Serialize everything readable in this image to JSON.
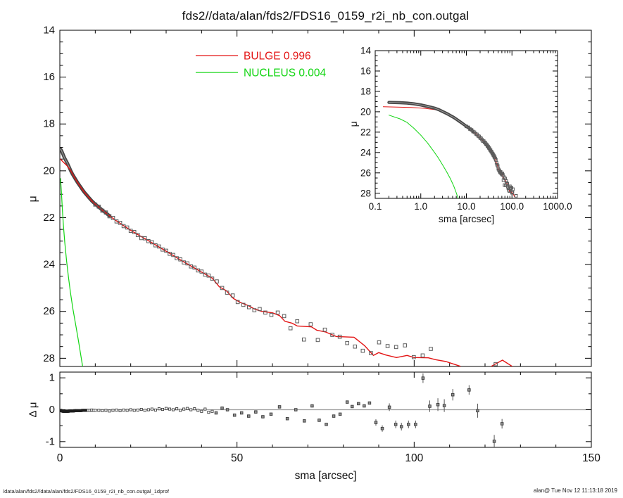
{
  "title": "fds2//data/alan/fds2/FDS16_0159_r2i_nb_con.outgal",
  "footer": {
    "left": "/data/alan/fds2//data/alan/fds2/FDS16_0159_r2i_nb_con.outgal_1dprof",
    "right": "alan@  Tue Nov 12 11:13:18 2019"
  },
  "colors": {
    "bulge": "#e31414",
    "nucleus": "#12d512",
    "data_band": "#474747",
    "data_square": "#5c5c5c",
    "axis": "#000000",
    "zero_line": "#9c9c9c",
    "residual_point": "#8f8f8f",
    "residual_dense": "#1c1c1c"
  },
  "legend": {
    "items": [
      {
        "label": "BULGE  0.996",
        "color": "#e31414"
      },
      {
        "label": "NUCLEUS  0.004",
        "color": "#12d512"
      }
    ]
  },
  "chart_data": [
    {
      "panel": "main",
      "type": "scatter",
      "xlim": [
        0,
        150
      ],
      "ylim": [
        14,
        28.35
      ],
      "y_reversed": true,
      "grid": false,
      "xticks_major": [
        0,
        50,
        100,
        150
      ],
      "xtick_minor_step": 10,
      "yticks": [
        14,
        16,
        18,
        20,
        22,
        24,
        26,
        28
      ],
      "ytick_labels": [
        "14",
        "16",
        "18",
        "20",
        "22",
        "24",
        "26",
        "28"
      ],
      "ytick_minor_step": 0.5,
      "ylabel": "μ",
      "series": {
        "data_band": [
          [
            0.2,
            19.08
          ],
          [
            0.35,
            19.11
          ],
          [
            0.5,
            19.15
          ],
          [
            0.7,
            19.22
          ],
          [
            1.0,
            19.33
          ],
          [
            1.3,
            19.44
          ],
          [
            1.6,
            19.53
          ],
          [
            2.0,
            19.64
          ],
          [
            2.5,
            19.8
          ],
          [
            3.0,
            19.97
          ],
          [
            3.5,
            20.12
          ],
          [
            4.0,
            20.25
          ],
          [
            4.5,
            20.38
          ],
          [
            5.0,
            20.5
          ],
          [
            5.5,
            20.61
          ],
          [
            6.0,
            20.72
          ],
          [
            6.5,
            20.83
          ],
          [
            7.0,
            20.93
          ],
          [
            7.5,
            21.02
          ],
          [
            8.0,
            21.11
          ],
          [
            9.0,
            21.28
          ],
          [
            10,
            21.42
          ],
          [
            11,
            21.55
          ],
          [
            12,
            21.68
          ],
          [
            13,
            21.8
          ],
          [
            14,
            21.92
          ]
        ],
        "nucleus_line": [
          [
            0.2,
            20.33
          ],
          [
            0.35,
            20.7
          ],
          [
            0.5,
            21.05
          ],
          [
            0.7,
            21.6
          ],
          [
            1.0,
            22.3
          ],
          [
            1.4,
            23.05
          ],
          [
            1.9,
            23.85
          ],
          [
            2.4,
            24.5
          ],
          [
            3.0,
            25.2
          ],
          [
            3.7,
            25.9
          ],
          [
            4.5,
            26.6
          ],
          [
            5.3,
            27.3
          ],
          [
            6.0,
            27.95
          ],
          [
            6.6,
            28.5
          ],
          [
            6.8,
            28.65
          ]
        ],
        "bulge_line": [
          [
            0.15,
            19.5
          ],
          [
            0.6,
            19.57
          ],
          [
            1.2,
            19.66
          ],
          [
            2,
            19.78
          ],
          [
            3,
            19.97
          ],
          [
            4,
            20.25
          ],
          [
            5,
            20.5
          ],
          [
            6,
            20.72
          ],
          [
            7,
            20.93
          ],
          [
            8,
            21.11
          ],
          [
            9,
            21.28
          ],
          [
            10,
            21.42
          ],
          [
            12,
            21.68
          ],
          [
            14,
            21.92
          ],
          [
            16,
            22.14
          ],
          [
            18,
            22.34
          ],
          [
            20,
            22.54
          ],
          [
            22,
            22.72
          ],
          [
            25,
            22.98
          ],
          [
            28,
            23.25
          ],
          [
            31,
            23.52
          ],
          [
            34,
            23.8
          ],
          [
            37,
            24.06
          ],
          [
            40,
            24.32
          ],
          [
            43,
            24.58
          ],
          [
            45,
            24.95
          ],
          [
            47,
            25.12
          ],
          [
            49,
            25.45
          ],
          [
            51,
            25.62
          ],
          [
            53,
            25.74
          ],
          [
            55,
            25.9
          ],
          [
            57,
            26.0
          ],
          [
            60,
            26.06
          ],
          [
            62,
            26.18
          ],
          [
            63.5,
            26.42
          ],
          [
            65.5,
            26.5
          ],
          [
            67,
            26.62
          ],
          [
            71,
            26.66
          ],
          [
            72.5,
            26.8
          ],
          [
            75,
            26.88
          ],
          [
            78,
            27.07
          ],
          [
            83,
            27.1
          ],
          [
            86,
            27.46
          ],
          [
            88.5,
            27.88
          ],
          [
            90,
            27.76
          ],
          [
            92,
            27.86
          ],
          [
            95,
            27.97
          ],
          [
            98,
            27.88
          ],
          [
            100,
            27.97
          ],
          [
            104,
            27.98
          ],
          [
            106,
            28.06
          ],
          [
            109,
            28.14
          ],
          [
            113,
            28.34
          ]
        ],
        "bulge_line_tail": [
          [
            121.8,
            28.34
          ],
          [
            124.9,
            28.08
          ],
          [
            127.6,
            28.34
          ]
        ],
        "data_squares": [
          [
            10,
            21.44
          ],
          [
            11,
            21.53
          ],
          [
            12,
            21.7
          ],
          [
            13,
            21.78
          ],
          [
            14,
            21.94
          ],
          [
            15,
            22.01
          ],
          [
            16,
            22.16
          ],
          [
            17,
            22.22
          ],
          [
            18,
            22.36
          ],
          [
            19,
            22.42
          ],
          [
            20,
            22.56
          ],
          [
            21,
            22.61
          ],
          [
            22,
            22.74
          ],
          [
            23,
            22.87
          ],
          [
            24,
            22.88
          ],
          [
            25,
            23.0
          ],
          [
            26,
            23.05
          ],
          [
            27,
            23.18
          ],
          [
            28,
            23.23
          ],
          [
            29,
            23.36
          ],
          [
            30,
            23.41
          ],
          [
            31,
            23.54
          ],
          [
            32,
            23.59
          ],
          [
            33,
            23.73
          ],
          [
            34,
            23.78
          ],
          [
            35,
            23.91
          ],
          [
            36,
            23.95
          ],
          [
            37,
            24.08
          ],
          [
            38,
            24.13
          ],
          [
            39,
            24.25
          ],
          [
            40,
            24.3
          ],
          [
            41,
            24.43
          ],
          [
            42,
            24.47
          ],
          [
            43,
            24.6
          ],
          [
            44.3,
            24.72
          ],
          [
            45.8,
            25.0
          ],
          [
            47.2,
            25.2
          ],
          [
            48.8,
            25.32
          ],
          [
            50.2,
            25.6
          ],
          [
            51.8,
            25.72
          ],
          [
            53.4,
            25.82
          ],
          [
            54.9,
            25.95
          ],
          [
            56.4,
            25.9
          ],
          [
            58.0,
            26.05
          ],
          [
            59.7,
            26.15
          ],
          [
            61.5,
            26.05
          ],
          [
            63.3,
            26.2
          ],
          [
            65.1,
            26.72
          ],
          [
            67.0,
            26.42
          ],
          [
            68.9,
            27.2
          ],
          [
            70.8,
            26.55
          ],
          [
            72.8,
            27.22
          ],
          [
            74.8,
            26.78
          ],
          [
            76.9,
            27.0
          ],
          [
            79.0,
            27.08
          ],
          [
            81.1,
            27.35
          ],
          [
            83.3,
            27.5
          ],
          [
            85.5,
            27.68
          ],
          [
            87.8,
            27.78
          ],
          [
            90.1,
            27.32
          ],
          [
            92.5,
            27.48
          ],
          [
            94.9,
            27.52
          ],
          [
            97.4,
            27.45
          ],
          [
            99.9,
            27.95
          ],
          [
            102.4,
            27.88
          ],
          [
            104.7,
            27.6
          ],
          [
            123.0,
            28.25
          ]
        ]
      }
    },
    {
      "panel": "inset",
      "type": "scatter",
      "xscale": "log",
      "xlim": [
        0.1,
        1000
      ],
      "ylim": [
        14,
        28.5
      ],
      "y_reversed": true,
      "grid": false,
      "xticks": [
        0.1,
        1,
        10,
        100,
        1000
      ],
      "xtick_labels": [
        "0.1",
        "1.0",
        "10.0",
        "100.0",
        "1000.0"
      ],
      "yticks": [
        14,
        16,
        18,
        20,
        22,
        24,
        26,
        28
      ],
      "ytick_labels": [
        "14",
        "16",
        "18",
        "20",
        "22",
        "24",
        "26",
        "28"
      ],
      "ytick_minor_step": 0.5,
      "xlabel": "sma [arcsec]",
      "ylabel": "μ",
      "series_from": "main"
    },
    {
      "panel": "residual",
      "type": "scatter",
      "xlim": [
        0,
        150
      ],
      "ylim": [
        -1.18,
        1.18
      ],
      "grid": false,
      "xticks_major": [
        0,
        50,
        100,
        150
      ],
      "xtick_labels": [
        "0",
        "50",
        "100",
        "150"
      ],
      "xtick_minor_step": 10,
      "yticks": [
        -1,
        0,
        1
      ],
      "ytick_labels": [
        "-1",
        "0",
        "1"
      ],
      "ytick_minor_step": 0.5,
      "xlabel": "sma [arcsec]",
      "ylabel": "Δ μ",
      "zero_line": true,
      "points_dense": [
        [
          0.2,
          -0.02
        ],
        [
          0.35,
          -0.03
        ],
        [
          0.5,
          -0.03
        ],
        [
          0.65,
          -0.04
        ],
        [
          0.8,
          -0.04
        ],
        [
          0.95,
          -0.05
        ],
        [
          1.1,
          -0.05
        ],
        [
          1.25,
          -0.05
        ],
        [
          1.4,
          -0.05
        ],
        [
          1.55,
          -0.05
        ],
        [
          1.7,
          -0.05
        ],
        [
          1.85,
          -0.05
        ],
        [
          2.0,
          -0.05
        ],
        [
          2.2,
          -0.05
        ],
        [
          2.4,
          -0.05
        ],
        [
          2.6,
          -0.04
        ],
        [
          2.8,
          -0.04
        ],
        [
          3.0,
          -0.04
        ],
        [
          3.3,
          -0.04
        ],
        [
          3.6,
          -0.04
        ],
        [
          3.9,
          -0.04
        ],
        [
          4.2,
          -0.03
        ],
        [
          4.5,
          -0.03
        ],
        [
          4.8,
          -0.03
        ],
        [
          5.2,
          -0.03
        ],
        [
          5.6,
          -0.03
        ],
        [
          6.0,
          -0.03
        ],
        [
          6.4,
          -0.02
        ],
        [
          6.8,
          -0.02
        ],
        [
          7.2,
          -0.02
        ],
        [
          7.6,
          -0.02
        ],
        [
          8.0,
          -0.02
        ],
        [
          8.5,
          -0.02
        ],
        [
          9.0,
          -0.01
        ],
        [
          9.5,
          -0.02
        ],
        [
          10,
          -0.02
        ],
        [
          11,
          -0.02
        ],
        [
          12,
          -0.03
        ],
        [
          13,
          -0.02
        ],
        [
          14,
          -0.04
        ],
        [
          15,
          -0.02
        ],
        [
          16,
          -0.01
        ],
        [
          17,
          -0.03
        ],
        [
          18,
          -0.01
        ],
        [
          19,
          -0.02
        ],
        [
          20,
          0.0
        ],
        [
          21,
          -0.02
        ],
        [
          22,
          -0.01
        ],
        [
          23,
          0.01
        ],
        [
          24,
          -0.02
        ],
        [
          25,
          0.0
        ],
        [
          26,
          0.02
        ],
        [
          27,
          -0.01
        ],
        [
          28,
          0.03
        ],
        [
          29,
          0.01
        ],
        [
          30,
          0.04
        ],
        [
          31,
          0.02
        ],
        [
          32,
          0.0
        ],
        [
          33,
          0.03
        ],
        [
          34,
          -0.02
        ],
        [
          35,
          0.02
        ],
        [
          36,
          0.04
        ],
        [
          37,
          0.0
        ],
        [
          38,
          0.03
        ],
        [
          39,
          -0.02
        ],
        [
          40,
          -0.05
        ],
        [
          41,
          0.02
        ],
        [
          42,
          -0.08
        ],
        [
          43,
          -0.05
        ]
      ],
      "points_scatter": [
        [
          44.1,
          -0.1,
          0
        ],
        [
          45.8,
          0.05,
          0
        ],
        [
          47.3,
          0.0,
          0
        ],
        [
          49.3,
          -0.17,
          0
        ],
        [
          51.3,
          -0.1,
          0
        ],
        [
          53.3,
          -0.2,
          0
        ],
        [
          55.3,
          -0.07,
          0
        ],
        [
          57.3,
          -0.22,
          0
        ],
        [
          59.6,
          -0.14,
          0
        ],
        [
          62.0,
          0.09,
          0
        ],
        [
          64.2,
          -0.28,
          0
        ],
        [
          66.6,
          0.0,
          0
        ],
        [
          69.0,
          -0.35,
          0
        ],
        [
          71.2,
          0.12,
          0
        ],
        [
          73.2,
          -0.33,
          0
        ],
        [
          75.2,
          -0.46,
          0
        ],
        [
          77.3,
          -0.2,
          0
        ],
        [
          79.1,
          -0.14,
          0
        ],
        [
          81.1,
          0.24,
          0
        ],
        [
          82.5,
          0.1,
          0
        ],
        [
          84.3,
          0.19,
          0
        ],
        [
          85.9,
          0.12,
          0
        ],
        [
          87.4,
          0.21,
          0
        ],
        [
          89.2,
          -0.4,
          0.1
        ],
        [
          91.0,
          -0.59,
          0.1
        ],
        [
          93.0,
          0.08,
          0.12
        ],
        [
          94.8,
          -0.46,
          0.12
        ],
        [
          96.4,
          -0.53,
          0.12
        ],
        [
          98.4,
          -0.46,
          0.12
        ],
        [
          100.4,
          -0.46,
          0.12
        ],
        [
          102.5,
          0.99,
          0.15
        ],
        [
          104.4,
          0.11,
          0.18
        ],
        [
          106.7,
          0.16,
          0.2
        ],
        [
          108.5,
          0.13,
          0.2
        ],
        [
          110.9,
          0.47,
          0.18
        ],
        [
          115.5,
          0.62,
          0.15
        ],
        [
          117.9,
          -0.03,
          0.22
        ],
        [
          122.6,
          -0.99,
          0.2
        ],
        [
          124.8,
          -0.44,
          0.15
        ]
      ]
    }
  ]
}
